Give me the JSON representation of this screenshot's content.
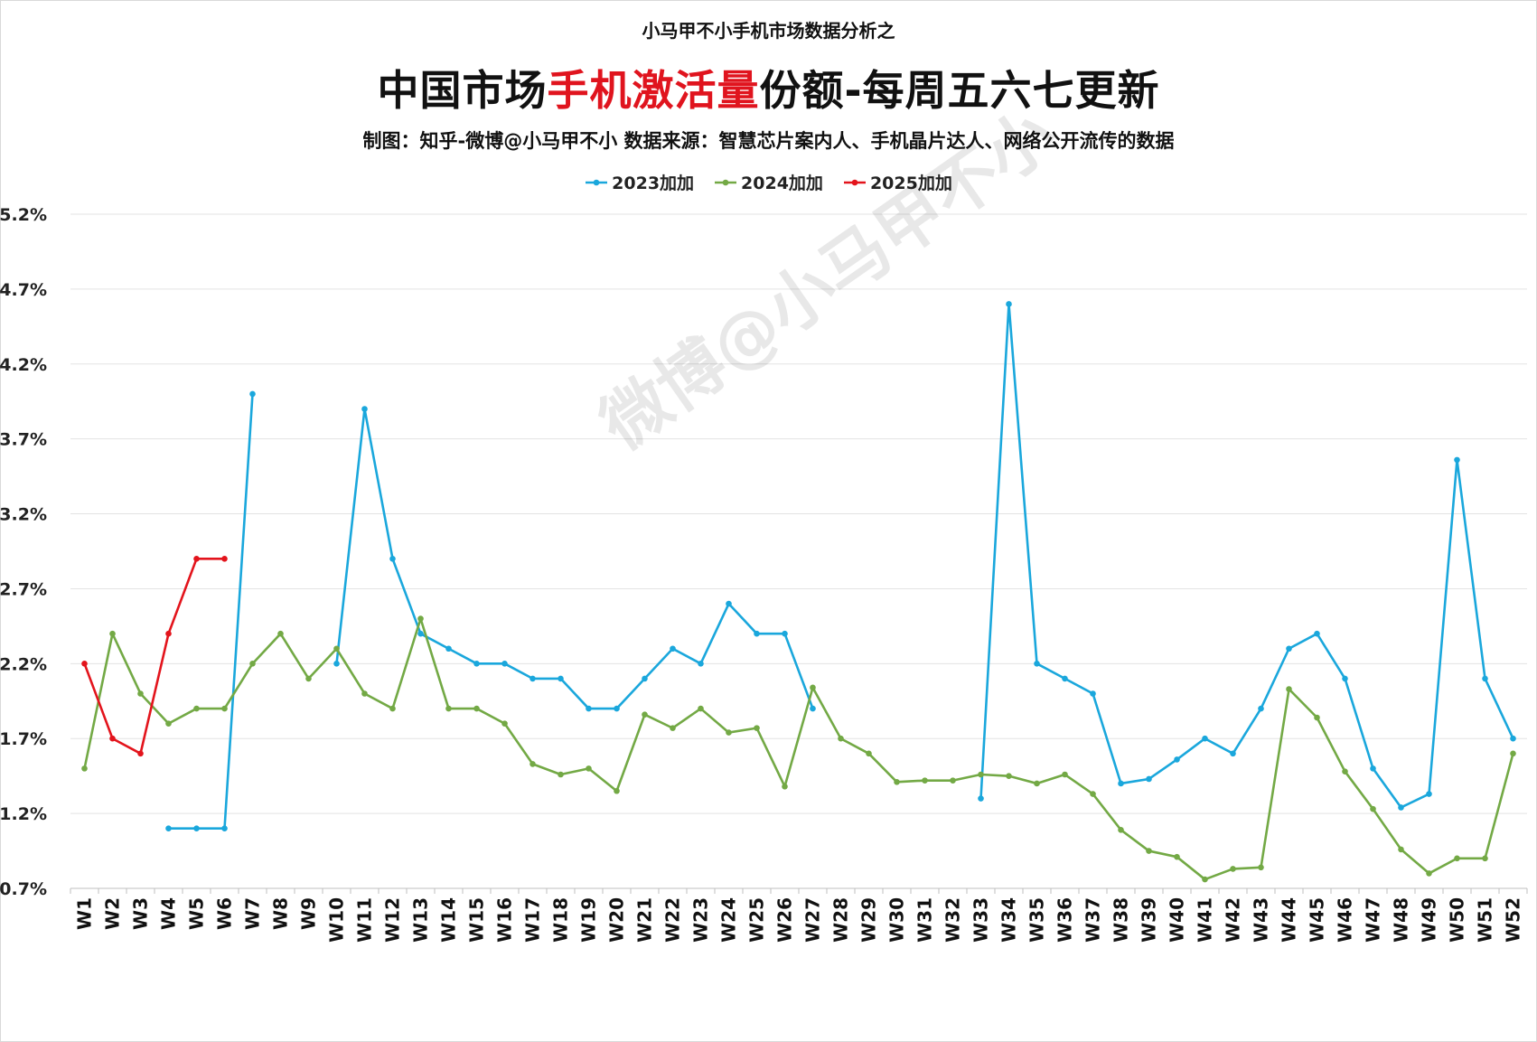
{
  "header": {
    "top_title": "小马甲不小手机市场数据分析之",
    "main_title_part1": "中国市场",
    "main_title_highlight": "手机激活量",
    "main_title_part2": "份额-每周五六七更新",
    "subtitle": "制图：知乎-微博@小马甲不小  数据来源：智慧芯片案内人、手机晶片达人、网络公开流传的数据"
  },
  "watermark": {
    "text": "微博@小马甲不小"
  },
  "colors": {
    "series_2023": "#1aa7dc",
    "series_2024": "#73a945",
    "series_2025": "#e3141c",
    "highlight": "#e0141e",
    "grid": "#e3e3e3"
  },
  "chart_data": {
    "type": "line",
    "y_tick_labels": [
      "0.7%",
      "1.2%",
      "1.7%",
      "2.2%",
      "2.7%",
      "3.2%",
      "3.7%",
      "4.2%",
      "4.7%",
      "5.2%"
    ],
    "ylim": [
      0.7,
      5.2
    ],
    "grid": "horizontal",
    "legend_position": "top",
    "categories": [
      "W1",
      "W2",
      "W3",
      "W4",
      "W5",
      "W6",
      "W7",
      "W8",
      "W9",
      "W10",
      "W11",
      "W12",
      "W13",
      "W14",
      "W15",
      "W16",
      "W17",
      "W18",
      "W19",
      "W20",
      "W21",
      "W22",
      "W23",
      "W24",
      "W25",
      "W26",
      "W27",
      "W28",
      "W29",
      "W30",
      "W31",
      "W32",
      "W33",
      "W34",
      "W35",
      "W36",
      "W37",
      "W38",
      "W39",
      "W40",
      "W41",
      "W42",
      "W43",
      "W44",
      "W45",
      "W46",
      "W47",
      "W48",
      "W49",
      "W50",
      "W51",
      "W52"
    ],
    "series": [
      {
        "name": "2023加加",
        "color": "#1aa7dc",
        "values": [
          null,
          null,
          null,
          1.1,
          1.1,
          1.1,
          4.0,
          null,
          null,
          2.2,
          3.9,
          2.9,
          2.4,
          2.3,
          2.2,
          2.2,
          2.1,
          2.1,
          1.9,
          1.9,
          2.1,
          2.3,
          2.2,
          2.6,
          2.4,
          2.4,
          1.9,
          null,
          null,
          null,
          null,
          null,
          1.3,
          4.6,
          2.2,
          2.1,
          2.0,
          1.4,
          1.43,
          1.56,
          1.7,
          1.6,
          1.9,
          2.3,
          2.4,
          2.1,
          1.5,
          1.24,
          1.33,
          3.56,
          2.1,
          1.7
        ]
      },
      {
        "name": "2024加加",
        "color": "#73a945",
        "values": [
          1.5,
          2.4,
          2.0,
          1.8,
          1.9,
          1.9,
          2.2,
          2.4,
          2.1,
          2.3,
          2.0,
          1.9,
          2.5,
          1.9,
          1.9,
          1.8,
          1.53,
          1.46,
          1.5,
          1.35,
          1.86,
          1.77,
          1.9,
          1.74,
          1.77,
          1.38,
          2.04,
          1.7,
          1.6,
          1.41,
          1.42,
          1.42,
          1.46,
          1.45,
          1.4,
          1.46,
          1.33,
          1.09,
          0.95,
          0.91,
          0.76,
          0.83,
          0.84,
          2.03,
          1.84,
          1.48,
          1.23,
          0.96,
          0.8,
          0.9,
          0.9,
          1.6
        ]
      },
      {
        "name": "2025加加",
        "color": "#e3141c",
        "values": [
          2.2,
          1.7,
          1.6,
          2.4,
          2.9,
          2.9,
          null,
          null,
          null,
          null,
          null,
          null,
          null,
          null,
          null,
          null,
          null,
          null,
          null,
          null,
          null,
          null,
          null,
          null,
          null,
          null,
          null,
          null,
          null,
          null,
          null,
          null,
          null,
          null,
          null,
          null,
          null,
          null,
          null,
          null,
          null,
          null,
          null,
          null,
          null,
          null,
          null,
          null,
          null,
          null,
          null,
          null
        ]
      }
    ]
  }
}
